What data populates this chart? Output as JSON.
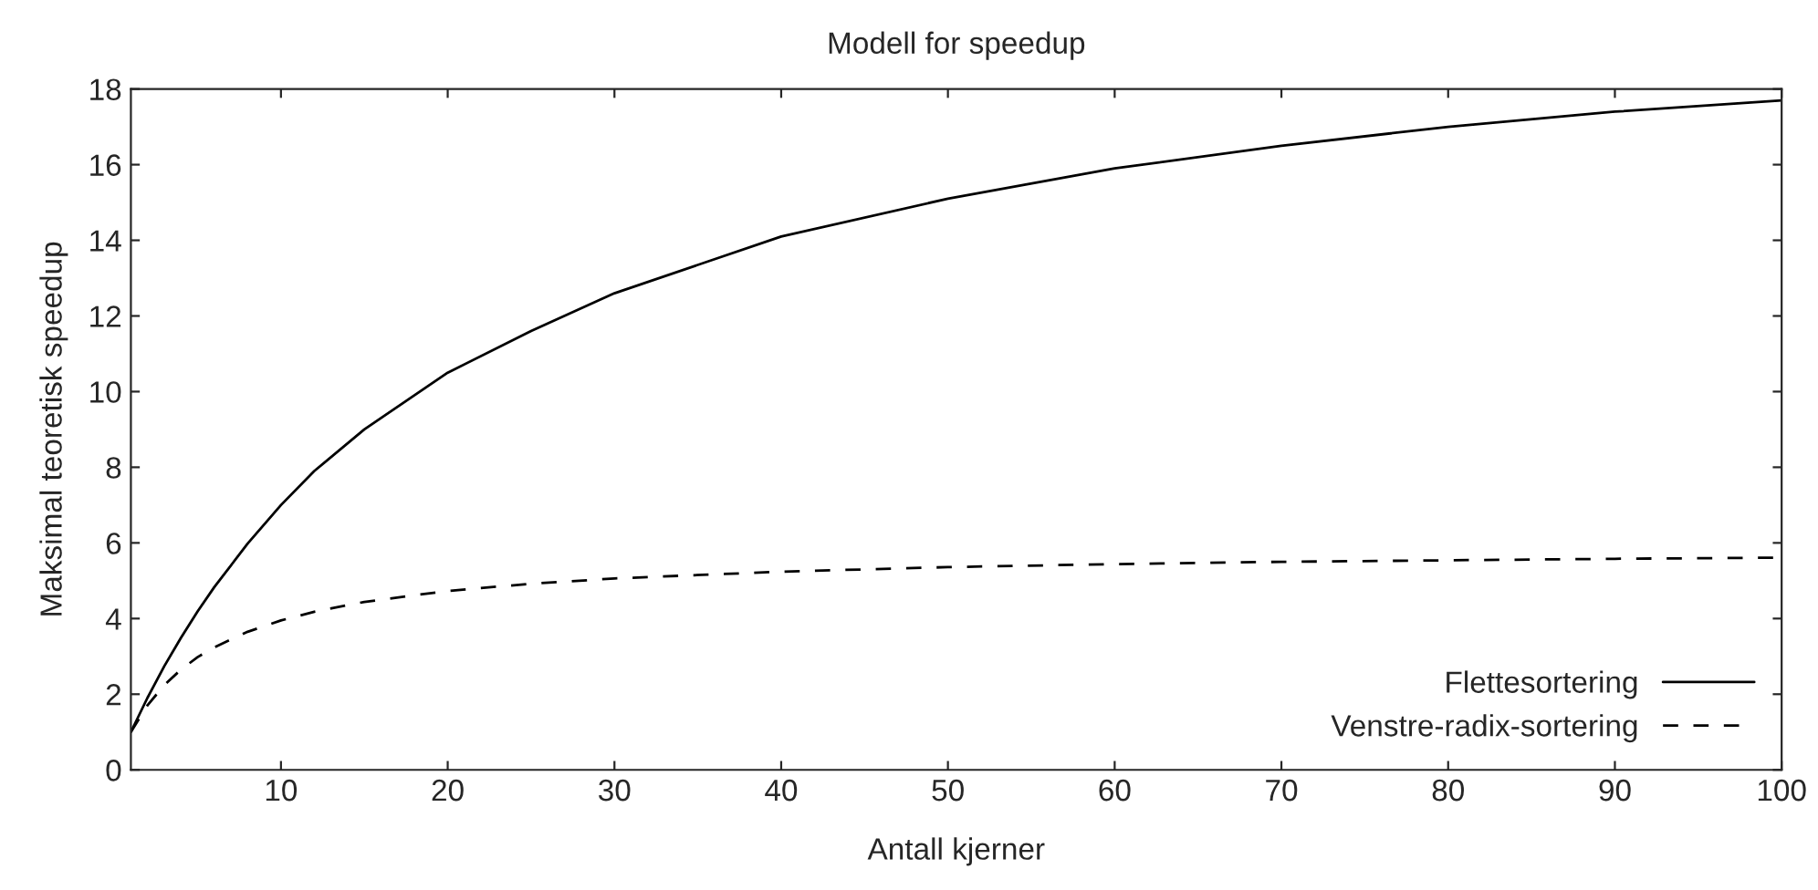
{
  "chart_data": {
    "type": "line",
    "title": "Modell for speedup",
    "xlabel": "Antall kjerner",
    "ylabel": "Maksimal teoretisk speedup",
    "x": [
      1,
      2,
      3,
      4,
      5,
      6,
      8,
      10,
      12,
      15,
      20,
      25,
      30,
      40,
      50,
      60,
      70,
      80,
      90,
      100
    ],
    "series": [
      {
        "name": "Flettesortering",
        "color": "#000000",
        "line_style": "solid",
        "values": [
          1,
          1.91,
          2.74,
          3.49,
          4.19,
          4.83,
          5.98,
          7.0,
          7.9,
          9.0,
          10.5,
          11.6,
          12.6,
          14.1,
          15.1,
          15.9,
          16.5,
          17.0,
          17.4,
          17.7
        ]
      },
      {
        "name": "Venstre-radix-sortering",
        "color": "#000000",
        "line_style": "dashed",
        "values": [
          1,
          1.71,
          2.24,
          2.65,
          2.98,
          3.24,
          3.65,
          3.95,
          4.18,
          4.44,
          4.73,
          4.92,
          5.06,
          5.24,
          5.36,
          5.44,
          5.5,
          5.54,
          5.58,
          5.61
        ]
      }
    ],
    "xlim": [
      1,
      100
    ],
    "xticks": [
      10,
      20,
      30,
      40,
      50,
      60,
      70,
      80,
      90,
      100
    ],
    "ylim": [
      0,
      18
    ],
    "yticks": [
      0,
      2,
      4,
      6,
      8,
      10,
      12,
      14,
      16,
      18
    ],
    "grid": false,
    "legend": "bottom right",
    "marker": "none"
  }
}
